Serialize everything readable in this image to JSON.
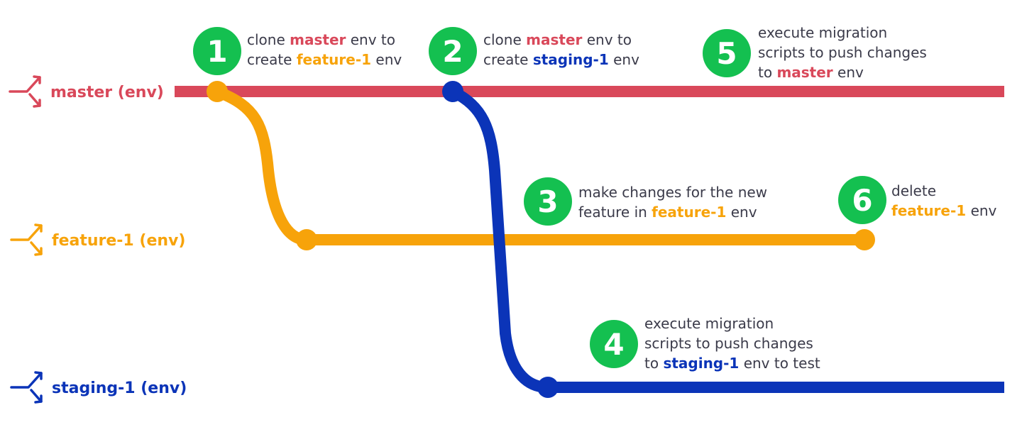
{
  "colors": {
    "master": "#d9485a",
    "feature": "#f7a30a",
    "staging": "#0b34b8",
    "step_badge": "#14c050",
    "text": "#3b3b4a"
  },
  "lanes": {
    "master": {
      "label": "master (env)",
      "icon": "branch-icon"
    },
    "feature": {
      "label": "feature-1 (env)",
      "icon": "branch-icon"
    },
    "staging": {
      "label": "staging-1 (env)",
      "icon": "branch-icon"
    }
  },
  "steps": [
    {
      "number": "1",
      "lines": [
        [
          {
            "t": "clone "
          },
          {
            "t": "master",
            "c": "master"
          },
          {
            "t": " env to"
          }
        ],
        [
          {
            "t": "create "
          },
          {
            "t": "feature-1",
            "c": "feature"
          },
          {
            "t": " env"
          }
        ]
      ]
    },
    {
      "number": "2",
      "lines": [
        [
          {
            "t": "clone "
          },
          {
            "t": "master",
            "c": "master"
          },
          {
            "t": " env to"
          }
        ],
        [
          {
            "t": "create "
          },
          {
            "t": "staging-1",
            "c": "staging"
          },
          {
            "t": " env"
          }
        ]
      ]
    },
    {
      "number": "3",
      "lines": [
        [
          {
            "t": "make changes for the new"
          }
        ],
        [
          {
            "t": "feature in "
          },
          {
            "t": "feature-1",
            "c": "feature"
          },
          {
            "t": " env"
          }
        ]
      ]
    },
    {
      "number": "4",
      "lines": [
        [
          {
            "t": "execute migration"
          }
        ],
        [
          {
            "t": "scripts to push changes"
          }
        ],
        [
          {
            "t": "to "
          },
          {
            "t": "staging-1",
            "c": "staging"
          },
          {
            "t": " env to test"
          }
        ]
      ]
    },
    {
      "number": "5",
      "lines": [
        [
          {
            "t": "execute migration"
          }
        ],
        [
          {
            "t": "scripts to push changes"
          }
        ],
        [
          {
            "t": "to "
          },
          {
            "t": "master",
            "c": "master"
          },
          {
            "t": " env"
          }
        ]
      ]
    },
    {
      "number": "6",
      "lines": [
        [
          {
            "t": "delete"
          }
        ],
        [
          {
            "t": "feature-1",
            "c": "feature"
          },
          {
            "t": " env"
          }
        ]
      ]
    }
  ]
}
